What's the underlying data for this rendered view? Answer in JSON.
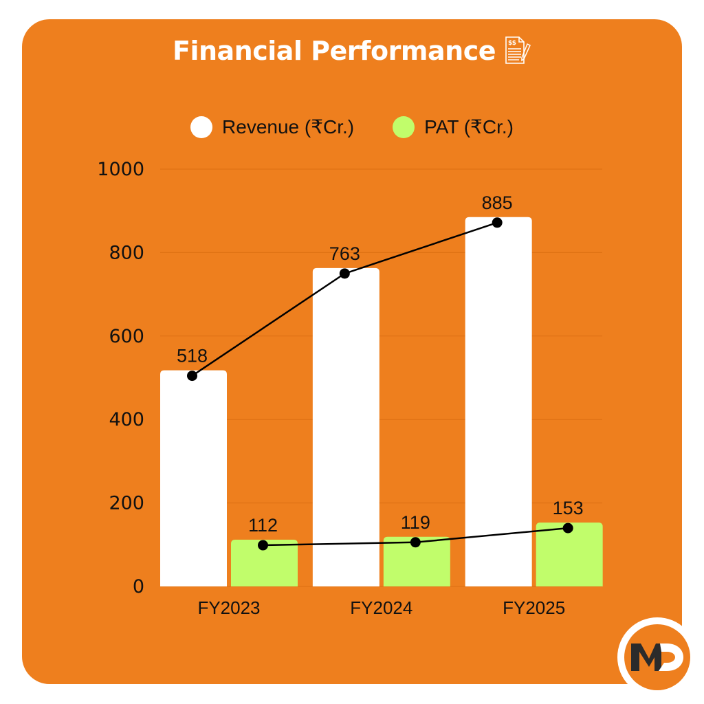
{
  "title": "Financial Performance",
  "title_icon": "invoice-document-pen-icon",
  "colors": {
    "background_card": "#ee7f1e",
    "revenue": "#ffffff",
    "pat": "#c1fd6b",
    "line": "#000000",
    "gridline": "#dc6f12",
    "logo_dark": "#2b2b2b"
  },
  "legend": [
    {
      "label": "Revenue (₹Cr.)",
      "color": "#ffffff"
    },
    {
      "label": "PAT (₹Cr.)",
      "color": "#c1fd6b"
    }
  ],
  "logo": {
    "text_m": "M",
    "text_d": "D"
  },
  "chart_data": {
    "type": "bar",
    "title": "Financial Performance",
    "categories": [
      "FY2023",
      "FY2024",
      "FY2025"
    ],
    "series": [
      {
        "name": "Revenue (₹Cr.)",
        "values": [
          518,
          763,
          885
        ],
        "color": "#ffffff",
        "overlay_line": true
      },
      {
        "name": "PAT (₹Cr.)",
        "values": [
          112,
          119,
          153
        ],
        "color": "#c1fd6b",
        "overlay_line": true
      }
    ],
    "xlabel": "",
    "ylabel": "",
    "ylim": [
      0,
      1000
    ],
    "yticks": [
      0,
      200,
      400,
      600,
      800,
      1000
    ],
    "grid": true,
    "legend_position": "top",
    "data_labels": true
  }
}
